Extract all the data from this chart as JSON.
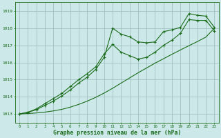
{
  "title": "Graphe pression niveau de la mer (hPa)",
  "background_color": "#cce8e8",
  "plot_bg_color": "#cce8e8",
  "grid_color": "#99bbbb",
  "line_color": "#1a6b1a",
  "xlim": [
    -0.5,
    23.5
  ],
  "ylim": [
    1012.5,
    1019.5
  ],
  "yticks": [
    1013,
    1014,
    1015,
    1016,
    1017,
    1018,
    1019
  ],
  "xticks": [
    0,
    1,
    2,
    3,
    4,
    5,
    6,
    7,
    8,
    9,
    10,
    11,
    12,
    13,
    14,
    15,
    16,
    17,
    18,
    19,
    20,
    21,
    22,
    23
  ],
  "series1_x": [
    0,
    1,
    2,
    3,
    4,
    5,
    6,
    7,
    8,
    9,
    10,
    11,
    12,
    13,
    14,
    15,
    16,
    17,
    18,
    19,
    20,
    21,
    22,
    23
  ],
  "series1_y": [
    1013.0,
    1013.1,
    1013.3,
    1013.6,
    1013.9,
    1014.2,
    1014.6,
    1015.0,
    1015.35,
    1015.75,
    1016.5,
    1017.05,
    1016.6,
    1016.4,
    1016.2,
    1016.3,
    1016.6,
    1017.0,
    1017.3,
    1017.7,
    1018.5,
    1018.45,
    1018.45,
    1017.85
  ],
  "series2_x": [
    0,
    1,
    2,
    3,
    4,
    5,
    6,
    7,
    8,
    9,
    10,
    11,
    12,
    13,
    14,
    15,
    16,
    17,
    18,
    19,
    20,
    21,
    22,
    23
  ],
  "series2_y": [
    1013.0,
    1013.1,
    1013.25,
    1013.5,
    1013.75,
    1014.05,
    1014.4,
    1014.8,
    1015.15,
    1015.6,
    1016.3,
    1018.0,
    1017.65,
    1017.5,
    1017.2,
    1017.15,
    1017.2,
    1017.8,
    1017.9,
    1018.05,
    1018.85,
    1018.75,
    1018.7,
    1018.05
  ],
  "series3_x": [
    0,
    1,
    2,
    3,
    4,
    5,
    6,
    7,
    8,
    9,
    10,
    11,
    12,
    13,
    14,
    15,
    16,
    17,
    18,
    19,
    20,
    21,
    22,
    23
  ],
  "series3_y": [
    1013.0,
    1013.03,
    1013.06,
    1013.11,
    1013.18,
    1013.27,
    1013.4,
    1013.56,
    1013.75,
    1013.97,
    1014.22,
    1014.5,
    1014.8,
    1015.1,
    1015.4,
    1015.68,
    1015.96,
    1016.22,
    1016.48,
    1016.73,
    1016.98,
    1017.22,
    1017.48,
    1018.0
  ]
}
